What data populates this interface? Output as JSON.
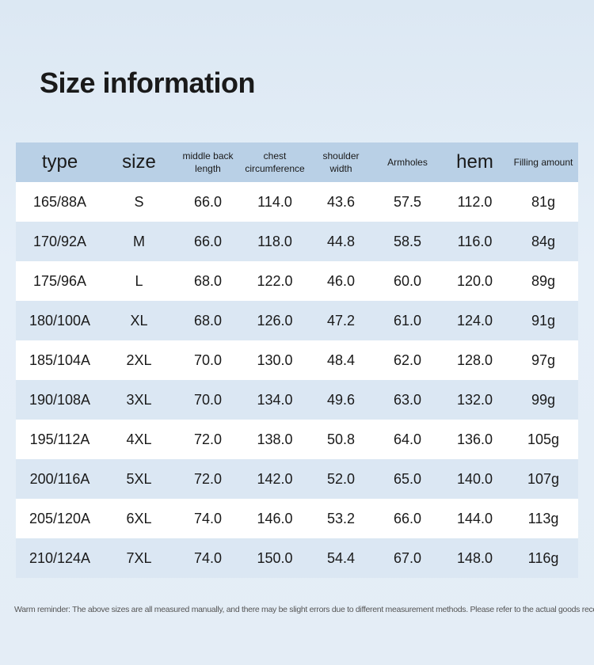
{
  "title": "Size information",
  "table": {
    "headers": [
      "type",
      "size",
      "middle back length",
      "chest circumference",
      "shoulder width",
      "Armholes",
      "hem",
      "Filling amount"
    ],
    "rows": [
      [
        "165/88A",
        "S",
        "66.0",
        "114.0",
        "43.6",
        "57.5",
        "112.0",
        "81g"
      ],
      [
        "170/92A",
        "M",
        "66.0",
        "118.0",
        "44.8",
        "58.5",
        "116.0",
        "84g"
      ],
      [
        "175/96A",
        "L",
        "68.0",
        "122.0",
        "46.0",
        "60.0",
        "120.0",
        "89g"
      ],
      [
        "180/100A",
        "XL",
        "68.0",
        "126.0",
        "47.2",
        "61.0",
        "124.0",
        "91g"
      ],
      [
        "185/104A",
        "2XL",
        "70.0",
        "130.0",
        "48.4",
        "62.0",
        "128.0",
        "97g"
      ],
      [
        "190/108A",
        "3XL",
        "70.0",
        "134.0",
        "49.6",
        "63.0",
        "132.0",
        "99g"
      ],
      [
        "195/112A",
        "4XL",
        "72.0",
        "138.0",
        "50.8",
        "64.0",
        "136.0",
        "105g"
      ],
      [
        "200/116A",
        "5XL",
        "72.0",
        "142.0",
        "52.0",
        "65.0",
        "140.0",
        "107g"
      ],
      [
        "205/120A",
        "6XL",
        "74.0",
        "146.0",
        "53.2",
        "66.0",
        "144.0",
        "113g"
      ],
      [
        "210/124A",
        "7XL",
        "74.0",
        "150.0",
        "54.4",
        "67.0",
        "148.0",
        "116g"
      ]
    ]
  },
  "note": "Warm reminder: The above sizes are all measured manually, and there may be slight errors due to different measurement methods. Please refer to the actual goods received."
}
